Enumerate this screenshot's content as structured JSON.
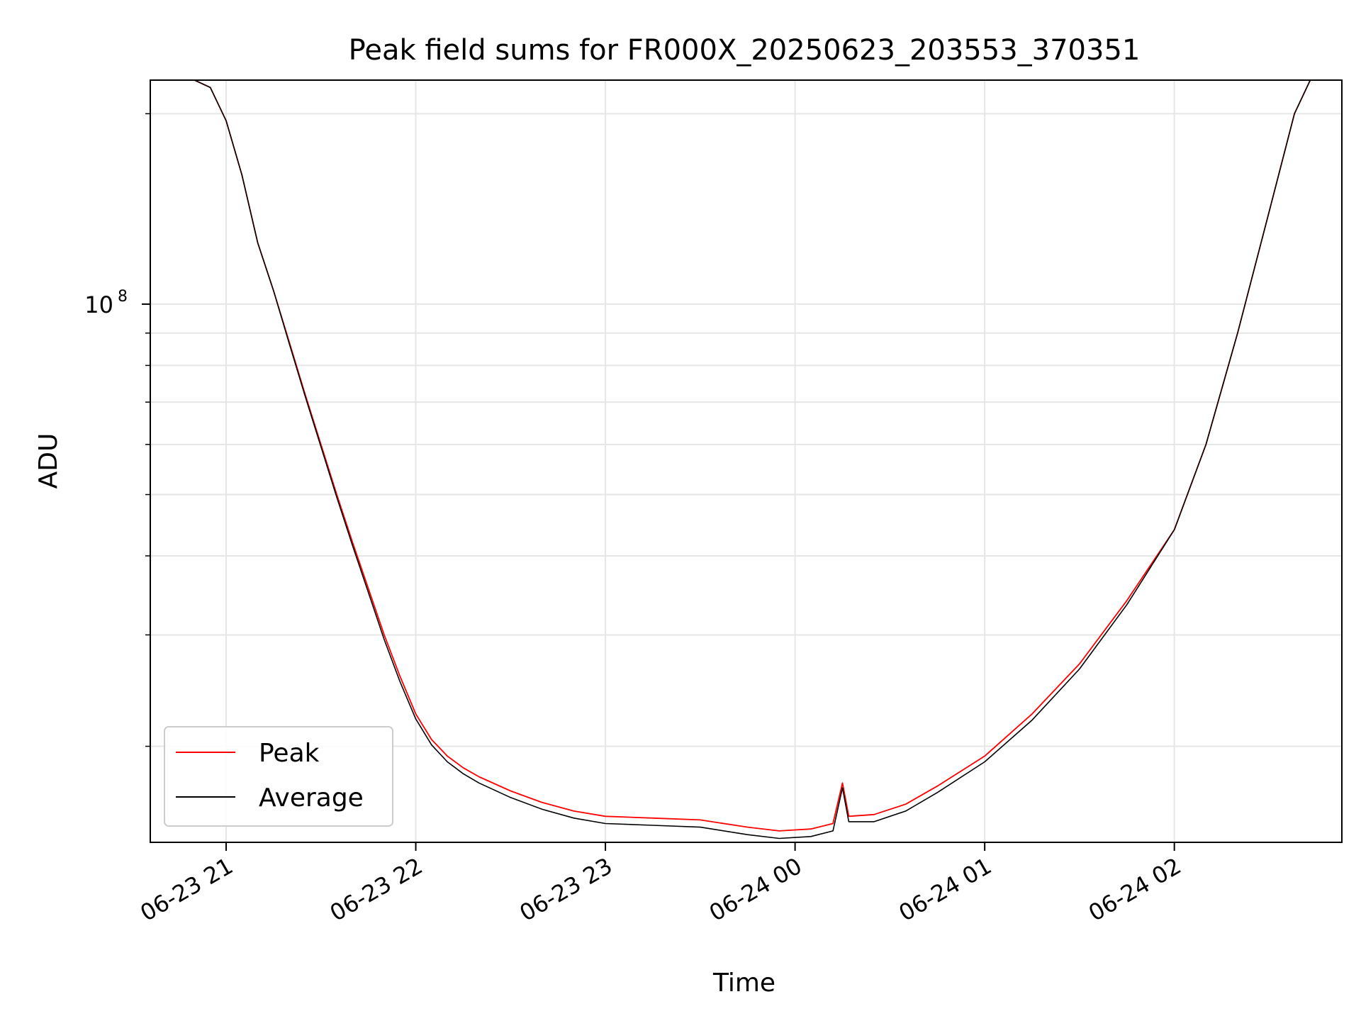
{
  "chart_data": {
    "type": "line",
    "title": "Peak field sums for FR000X_20250623_203553_370351",
    "xlabel": "Time",
    "ylabel": "ADU",
    "yscale": "log",
    "x_range": [
      "2025-06-23 20:36",
      "2025-06-24 02:53"
    ],
    "ylim": [
      14100000,
      226000000
    ],
    "x_tick_labels": [
      "06-23 21",
      "06-23 22",
      "06-23 23",
      "06-24 00",
      "06-24 01",
      "06-24 02"
    ],
    "x_ticks": [
      "2025-06-23 21:00",
      "2025-06-23 22:00",
      "2025-06-23 23:00",
      "2025-06-24 00:00",
      "2025-06-24 01:00",
      "2025-06-24 02:00"
    ],
    "y_major_ticks": [
      {
        "value": 100000000,
        "label_base": "10",
        "label_exp": "8"
      }
    ],
    "y_minor_ticks": [
      20000000,
      30000000,
      40000000,
      50000000,
      60000000,
      70000000,
      80000000,
      90000000,
      200000000
    ],
    "grid": true,
    "legend": {
      "position": "lower-left",
      "entries": [
        "Peak",
        "Average"
      ]
    },
    "series": [
      {
        "name": "Peak",
        "color": "#ff0000",
        "points": [
          [
            "2025-06-23 20:36",
            226000000
          ],
          [
            "2025-06-23 20:50",
            226000000
          ],
          [
            "2025-06-23 20:55",
            220000000
          ],
          [
            "2025-06-23 21:00",
            195000000
          ],
          [
            "2025-06-23 21:05",
            160000000
          ],
          [
            "2025-06-23 21:10",
            125000000
          ],
          [
            "2025-06-23 21:15",
            105000000
          ],
          [
            "2025-06-23 21:20",
            87000000
          ],
          [
            "2025-06-23 21:25",
            72000000
          ],
          [
            "2025-06-23 21:30",
            60000000
          ],
          [
            "2025-06-23 21:35",
            50000000
          ],
          [
            "2025-06-23 21:40",
            42000000
          ],
          [
            "2025-06-23 21:45",
            35500000
          ],
          [
            "2025-06-23 21:50",
            30000000
          ],
          [
            "2025-06-23 21:55",
            25800000
          ],
          [
            "2025-06-23 22:00",
            22500000
          ],
          [
            "2025-06-23 22:05",
            20500000
          ],
          [
            "2025-06-23 22:10",
            19300000
          ],
          [
            "2025-06-23 22:15",
            18500000
          ],
          [
            "2025-06-23 22:20",
            17900000
          ],
          [
            "2025-06-23 22:30",
            17000000
          ],
          [
            "2025-06-23 22:40",
            16300000
          ],
          [
            "2025-06-23 22:50",
            15800000
          ],
          [
            "2025-06-23 23:00",
            15500000
          ],
          [
            "2025-06-23 23:15",
            15400000
          ],
          [
            "2025-06-23 23:30",
            15300000
          ],
          [
            "2025-06-23 23:45",
            14900000
          ],
          [
            "2025-06-23 23:55",
            14700000
          ],
          [
            "2025-06-24 00:05",
            14800000
          ],
          [
            "2025-06-24 00:12",
            15100000
          ],
          [
            "2025-06-24 00:15",
            17500000
          ],
          [
            "2025-06-24 00:17",
            15500000
          ],
          [
            "2025-06-24 00:25",
            15600000
          ],
          [
            "2025-06-24 00:35",
            16200000
          ],
          [
            "2025-06-24 00:45",
            17300000
          ],
          [
            "2025-06-24 01:00",
            19300000
          ],
          [
            "2025-06-24 01:15",
            22500000
          ],
          [
            "2025-06-24 01:30",
            27000000
          ],
          [
            "2025-06-24 01:45",
            34000000
          ],
          [
            "2025-06-24 02:00",
            44000000
          ],
          [
            "2025-06-24 02:10",
            60000000
          ],
          [
            "2025-06-24 02:20",
            90000000
          ],
          [
            "2025-06-24 02:30",
            140000000
          ],
          [
            "2025-06-24 02:38",
            200000000
          ],
          [
            "2025-06-24 02:43",
            226000000
          ],
          [
            "2025-06-24 02:53",
            226000000
          ]
        ]
      },
      {
        "name": "Average",
        "color": "#000000",
        "points": [
          [
            "2025-06-23 20:36",
            226000000
          ],
          [
            "2025-06-23 20:50",
            226000000
          ],
          [
            "2025-06-23 20:55",
            220000000
          ],
          [
            "2025-06-23 21:00",
            195000000
          ],
          [
            "2025-06-23 21:05",
            160000000
          ],
          [
            "2025-06-23 21:10",
            125000000
          ],
          [
            "2025-06-23 21:15",
            105000000
          ],
          [
            "2025-06-23 21:20",
            86500000
          ],
          [
            "2025-06-23 21:25",
            71500000
          ],
          [
            "2025-06-23 21:30",
            59500000
          ],
          [
            "2025-06-23 21:35",
            49500000
          ],
          [
            "2025-06-23 21:40",
            41500000
          ],
          [
            "2025-06-23 21:45",
            35000000
          ],
          [
            "2025-06-23 21:50",
            29500000
          ],
          [
            "2025-06-23 21:55",
            25300000
          ],
          [
            "2025-06-23 22:00",
            22100000
          ],
          [
            "2025-06-23 22:05",
            20100000
          ],
          [
            "2025-06-23 22:10",
            18900000
          ],
          [
            "2025-06-23 22:15",
            18100000
          ],
          [
            "2025-06-23 22:20",
            17500000
          ],
          [
            "2025-06-23 22:30",
            16600000
          ],
          [
            "2025-06-23 22:40",
            15900000
          ],
          [
            "2025-06-23 22:50",
            15400000
          ],
          [
            "2025-06-23 23:00",
            15100000
          ],
          [
            "2025-06-23 23:15",
            15000000
          ],
          [
            "2025-06-23 23:30",
            14900000
          ],
          [
            "2025-06-23 23:45",
            14500000
          ],
          [
            "2025-06-23 23:55",
            14300000
          ],
          [
            "2025-06-24 00:05",
            14400000
          ],
          [
            "2025-06-24 00:12",
            14700000
          ],
          [
            "2025-06-24 00:15",
            17200000
          ],
          [
            "2025-06-24 00:17",
            15200000
          ],
          [
            "2025-06-24 00:25",
            15200000
          ],
          [
            "2025-06-24 00:35",
            15800000
          ],
          [
            "2025-06-24 00:45",
            16900000
          ],
          [
            "2025-06-24 01:00",
            18900000
          ],
          [
            "2025-06-24 01:15",
            22000000
          ],
          [
            "2025-06-24 01:30",
            26500000
          ],
          [
            "2025-06-24 01:45",
            33500000
          ],
          [
            "2025-06-24 02:00",
            44000000
          ],
          [
            "2025-06-24 02:10",
            60000000
          ],
          [
            "2025-06-24 02:20",
            90000000
          ],
          [
            "2025-06-24 02:30",
            140000000
          ],
          [
            "2025-06-24 02:38",
            200000000
          ],
          [
            "2025-06-24 02:43",
            226000000
          ],
          [
            "2025-06-24 02:53",
            226000000
          ]
        ]
      }
    ]
  }
}
